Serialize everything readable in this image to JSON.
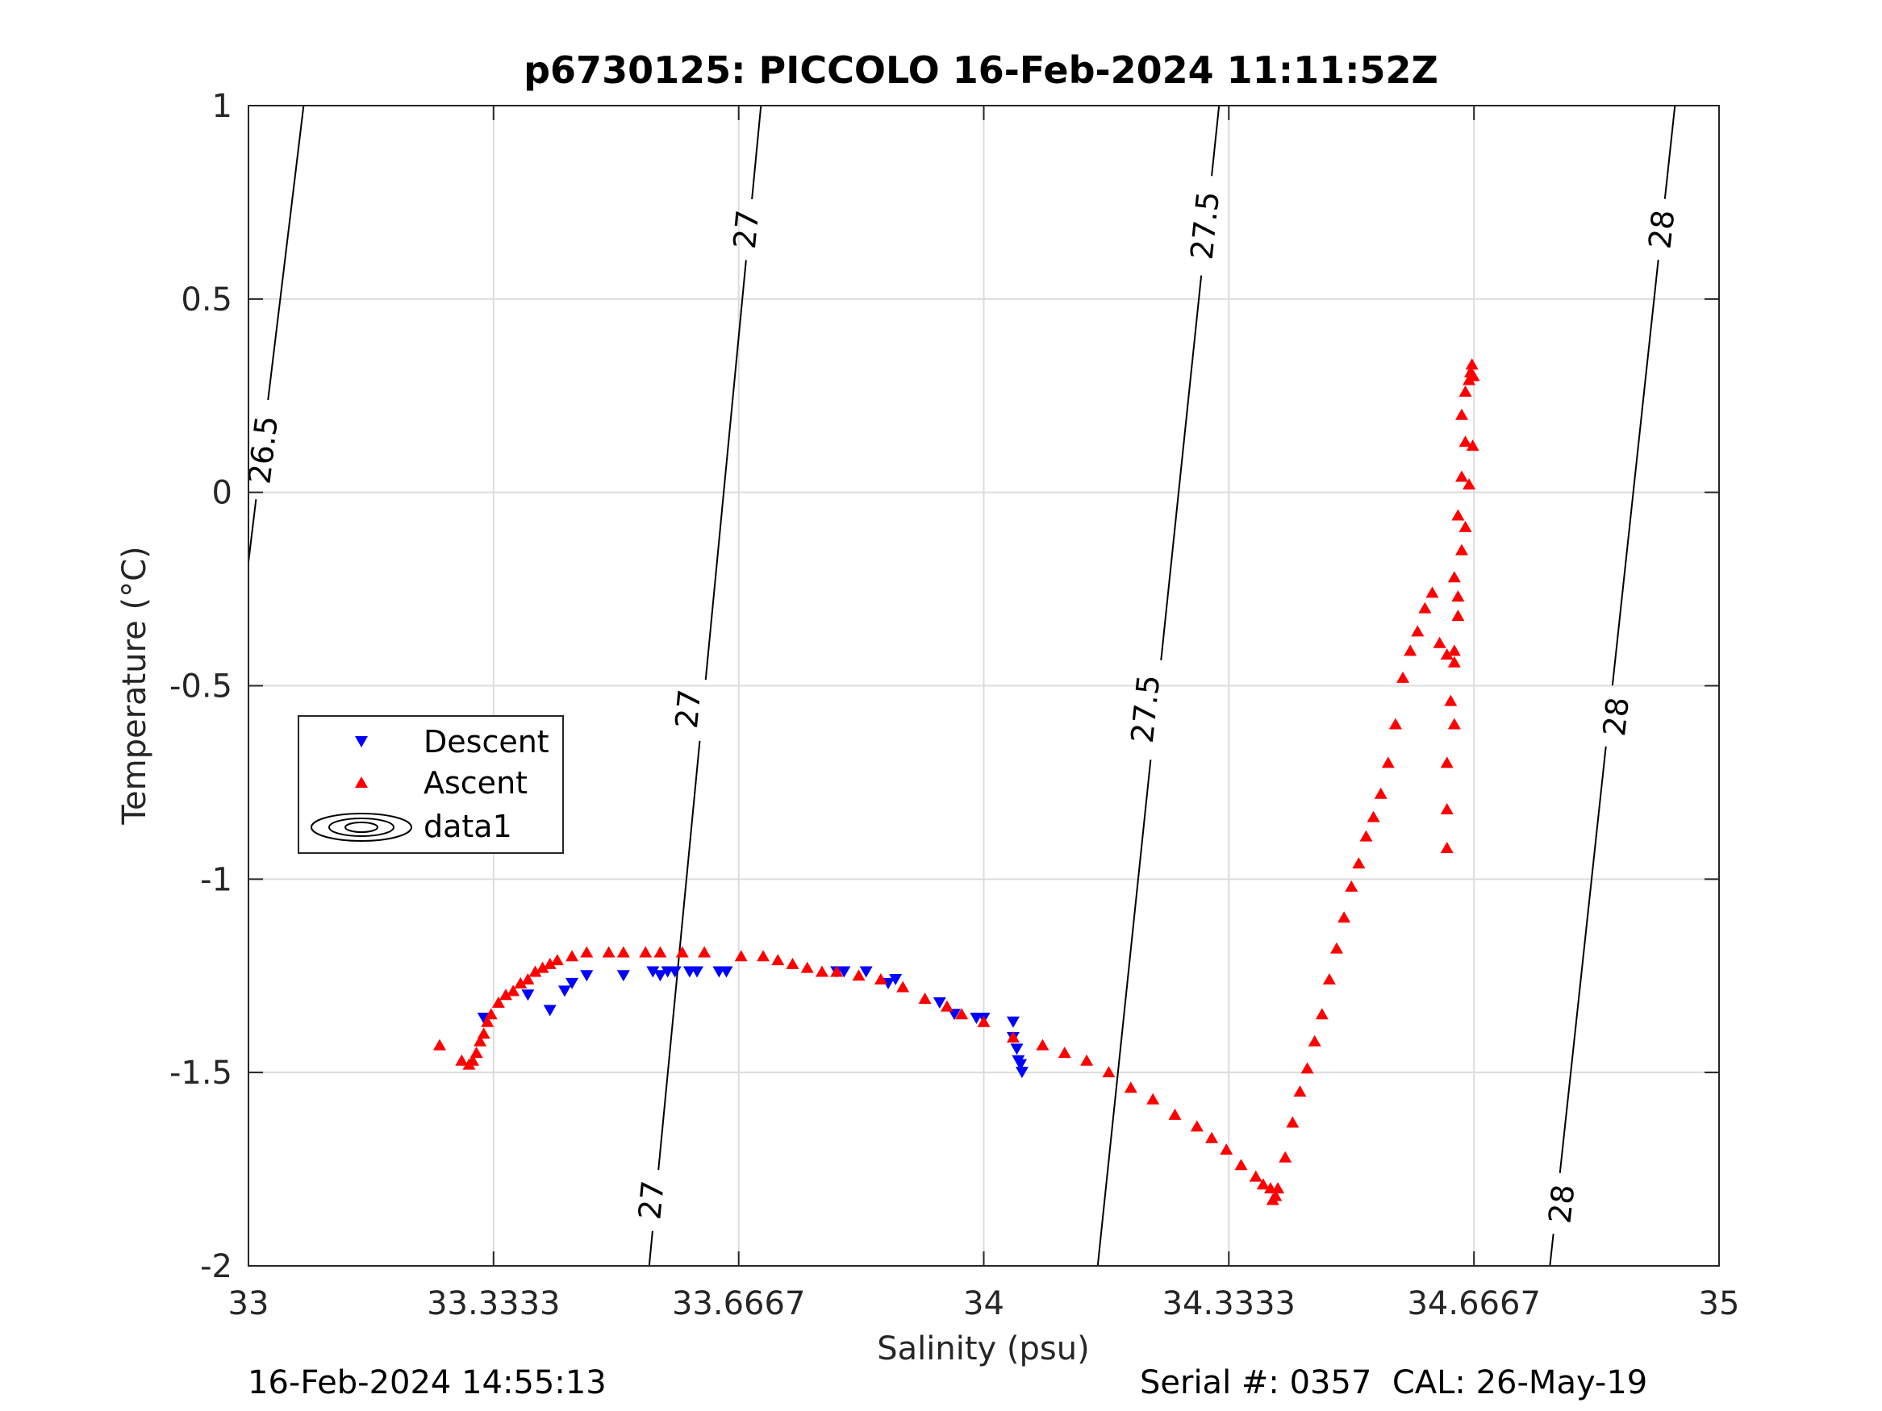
{
  "chart_data": {
    "type": "scatter",
    "title": "p6730125: PICCOLO 16-Feb-2024 11:11:52Z",
    "xlabel": "Salinity (psu)",
    "ylabel": "Temperature (°C)",
    "xlim": [
      33,
      35
    ],
    "ylim": [
      -2,
      1
    ],
    "xticks": [
      "33",
      "33.3333",
      "33.6667",
      "34",
      "34.3333",
      "34.6667",
      "35"
    ],
    "xtick_values": [
      33,
      33.3333,
      33.6667,
      34,
      34.3333,
      34.6667,
      35
    ],
    "yticks": [
      "1",
      "0.5",
      "0",
      "-0.5",
      "-1",
      "-1.5",
      "-2"
    ],
    "ytick_values": [
      1,
      0.5,
      0,
      -0.5,
      -1,
      -1.5,
      -2
    ],
    "grid": true,
    "legend": {
      "position": "left",
      "entries": [
        "Descent",
        "Ascent",
        "data1"
      ]
    },
    "contours": [
      {
        "level": "26.5",
        "points": [
          [
            33.0,
            -0.18
          ],
          [
            33.075,
            1.0
          ]
        ],
        "labels": [
          {
            "text": "26.5",
            "at": [
              33.02,
              0.11
            ]
          }
        ]
      },
      {
        "level": "27",
        "points": [
          [
            33.545,
            -2.0
          ],
          [
            33.697,
            1.0
          ]
        ],
        "labels": [
          {
            "text": "27",
            "at": [
              33.548,
              -1.83
            ]
          },
          {
            "text": "27",
            "at": [
              33.598,
              -0.56
            ]
          },
          {
            "text": "27",
            "at": [
              33.677,
              0.68
            ]
          }
        ]
      },
      {
        "level": "27.5",
        "points": [
          [
            34.155,
            -2.0
          ],
          [
            34.32,
            1.0
          ]
        ],
        "labels": [
          {
            "text": "27.5",
            "at": [
              34.22,
              -0.56
            ]
          },
          {
            "text": "27.5",
            "at": [
              34.301,
              0.69
            ]
          }
        ]
      },
      {
        "level": "28",
        "points": [
          [
            34.77,
            -2.0
          ],
          [
            34.94,
            1.0
          ]
        ],
        "labels": [
          {
            "text": "28",
            "at": [
              34.786,
              -1.84
            ]
          },
          {
            "text": "28",
            "at": [
              34.86,
              -0.58
            ]
          },
          {
            "text": "28",
            "at": [
              34.922,
              0.68
            ]
          }
        ]
      }
    ],
    "series": [
      {
        "name": "Descent",
        "color": "#0000ff",
        "marker": "triangle-down",
        "x": [
          33.32,
          33.38,
          33.41,
          33.43,
          33.44,
          33.46,
          33.51,
          33.55,
          33.56,
          33.57,
          33.58,
          33.6,
          33.61,
          33.64,
          33.65,
          33.8,
          33.81,
          33.84,
          33.87,
          33.88,
          33.94,
          33.96,
          33.99,
          34.0,
          34.04,
          34.04,
          34.045,
          34.047,
          34.05,
          34.052
        ],
        "y": [
          -1.36,
          -1.3,
          -1.34,
          -1.29,
          -1.27,
          -1.25,
          -1.25,
          -1.24,
          -1.25,
          -1.24,
          -1.24,
          -1.24,
          -1.24,
          -1.24,
          -1.24,
          -1.24,
          -1.24,
          -1.24,
          -1.27,
          -1.26,
          -1.32,
          -1.35,
          -1.36,
          -1.36,
          -1.37,
          -1.41,
          -1.44,
          -1.47,
          -1.48,
          -1.5
        ]
      },
      {
        "name": "Ascent",
        "color": "#ff0000",
        "marker": "triangle-up",
        "x": [
          33.26,
          33.29,
          33.3,
          33.305,
          33.31,
          33.315,
          33.32,
          33.325,
          33.33,
          33.34,
          33.35,
          33.36,
          33.37,
          33.38,
          33.39,
          33.4,
          33.41,
          33.42,
          33.44,
          33.46,
          33.49,
          33.51,
          33.54,
          33.56,
          33.59,
          33.62,
          33.67,
          33.7,
          33.72,
          33.74,
          33.76,
          33.78,
          33.8,
          33.83,
          33.86,
          33.89,
          33.92,
          33.95,
          33.97,
          34.0,
          34.04,
          34.08,
          34.11,
          34.14,
          34.17,
          34.2,
          34.23,
          34.26,
          34.29,
          34.31,
          34.33,
          34.35,
          34.37,
          34.38,
          34.39,
          34.393,
          34.397,
          34.4,
          34.41,
          34.42,
          34.43,
          34.44,
          34.45,
          34.46,
          34.47,
          34.48,
          34.49,
          34.5,
          34.51,
          34.52,
          34.53,
          34.54,
          34.55,
          34.56,
          34.57,
          34.58,
          34.59,
          34.6,
          34.61,
          34.62,
          34.63,
          34.64,
          34.645,
          34.65,
          34.655,
          34.66,
          34.665,
          34.63,
          34.63,
          34.63,
          34.64,
          34.635,
          34.64,
          34.645,
          34.64,
          34.645,
          34.65,
          34.655,
          34.65,
          34.655,
          34.66,
          34.662,
          34.664,
          34.666
        ],
        "y": [
          -1.43,
          -1.47,
          -1.48,
          -1.47,
          -1.45,
          -1.42,
          -1.4,
          -1.37,
          -1.35,
          -1.32,
          -1.3,
          -1.29,
          -1.27,
          -1.26,
          -1.24,
          -1.23,
          -1.22,
          -1.21,
          -1.2,
          -1.19,
          -1.19,
          -1.19,
          -1.19,
          -1.19,
          -1.19,
          -1.19,
          -1.2,
          -1.2,
          -1.21,
          -1.22,
          -1.23,
          -1.24,
          -1.24,
          -1.25,
          -1.26,
          -1.28,
          -1.31,
          -1.33,
          -1.35,
          -1.37,
          -1.41,
          -1.43,
          -1.45,
          -1.47,
          -1.5,
          -1.54,
          -1.57,
          -1.61,
          -1.64,
          -1.67,
          -1.7,
          -1.74,
          -1.77,
          -1.79,
          -1.8,
          -1.83,
          -1.82,
          -1.8,
          -1.72,
          -1.63,
          -1.55,
          -1.49,
          -1.42,
          -1.35,
          -1.26,
          -1.18,
          -1.1,
          -1.02,
          -0.96,
          -0.89,
          -0.84,
          -0.78,
          -0.7,
          -0.6,
          -0.48,
          -0.41,
          -0.36,
          -0.3,
          -0.26,
          -0.39,
          -0.42,
          -0.41,
          -0.27,
          -0.15,
          -0.09,
          0.02,
          0.12,
          -0.92,
          -0.82,
          -0.7,
          -0.6,
          -0.54,
          -0.44,
          -0.32,
          -0.22,
          -0.06,
          0.04,
          0.13,
          0.2,
          0.26,
          0.29,
          0.31,
          0.33,
          0.3
        ]
      },
      {
        "name": "data1",
        "color": "#000000",
        "marker": "contour"
      }
    ]
  },
  "footer": {
    "timestamp": "16-Feb-2024 14:55:13",
    "serial": "Serial #: 0357  CAL: 26-May-19"
  }
}
